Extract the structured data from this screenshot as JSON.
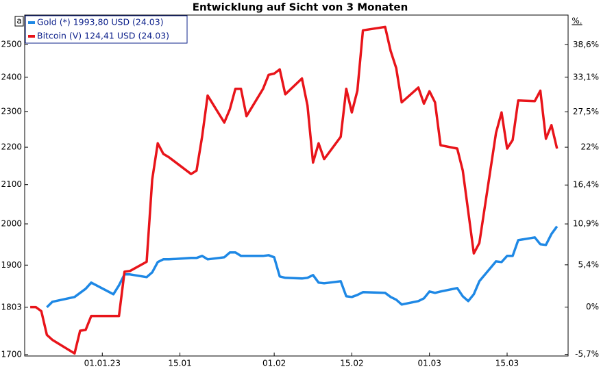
{
  "chart_data": {
    "type": "line",
    "title": "Entwicklung auf Sicht von 3 Monaten",
    "y_label": "a",
    "y2_label": "%.",
    "log_scale": true,
    "grid": false,
    "legend": "upper left",
    "x": [
      "2022-12-19",
      "2022-12-20",
      "2022-12-21",
      "2022-12-22",
      "2022-12-23",
      "2022-12-27",
      "2022-12-28",
      "2022-12-29",
      "2022-12-30",
      "2023-01-03",
      "2023-01-04",
      "2023-01-05",
      "2023-01-06",
      "2023-01-09",
      "2023-01-10",
      "2023-01-11",
      "2023-01-12",
      "2023-01-13",
      "2023-01-17",
      "2023-01-18",
      "2023-01-19",
      "2023-01-20",
      "2023-01-23",
      "2023-01-24",
      "2023-01-25",
      "2023-01-26",
      "2023-01-27",
      "2023-01-30",
      "2023-01-31",
      "2023-02-01",
      "2023-02-02",
      "2023-02-03",
      "2023-02-06",
      "2023-02-07",
      "2023-02-08",
      "2023-02-09",
      "2023-02-10",
      "2023-02-13",
      "2023-02-14",
      "2023-02-15",
      "2023-02-16",
      "2023-02-17",
      "2023-02-21",
      "2023-02-22",
      "2023-02-23",
      "2023-02-24",
      "2023-02-27",
      "2023-02-28",
      "2023-03-01",
      "2023-03-02",
      "2023-03-03",
      "2023-03-06",
      "2023-03-07",
      "2023-03-08",
      "2023-03-09",
      "2023-03-10",
      "2023-03-13",
      "2023-03-14",
      "2023-03-15",
      "2023-03-16",
      "2023-03-17",
      "2023-03-20",
      "2023-03-21",
      "2023-03-22",
      "2023-03-23",
      "2023-03-24"
    ],
    "xlim": [
      "2022-12-18",
      "2023-03-26"
    ],
    "xticks": [
      {
        "value": "2023-01-01",
        "label": "01.01.23"
      },
      {
        "value": "2023-01-15",
        "label": "15.01"
      },
      {
        "value": "2023-02-01",
        "label": "01.02"
      },
      {
        "value": "2023-02-15",
        "label": "15.02"
      },
      {
        "value": "2023-03-01",
        "label": "01.03"
      },
      {
        "value": "2023-03-15",
        "label": "15.03"
      }
    ],
    "ylim": [
      1697,
      2593
    ],
    "yticks": [
      1700,
      1803,
      1900,
      2000,
      2100,
      2200,
      2300,
      2400,
      2500
    ],
    "y2lim": [
      -5.9,
      43.8
    ],
    "y2ticks": [
      {
        "value": -5.7,
        "label": "-5,7%"
      },
      {
        "value": 0,
        "label": "0%"
      },
      {
        "value": 5.4,
        "label": "5,4%"
      },
      {
        "value": 10.9,
        "label": "10,9%"
      },
      {
        "value": 16.4,
        "label": "16,4%"
      },
      {
        "value": 22,
        "label": "22%"
      },
      {
        "value": 27.5,
        "label": "27,5%"
      },
      {
        "value": 33.1,
        "label": "33,1%"
      },
      {
        "value": 38.6,
        "label": "38,6%"
      }
    ],
    "series": [
      {
        "name": "Gold (*) 1993,80 USD (24.03)",
        "color": "#1e88e5",
        "values": [
          null,
          null,
          null,
          1803,
          1815.3,
          1826.2,
          1835.6,
          1845.0,
          1859.1,
          1832.4,
          1852.8,
          1878.2,
          1878.2,
          1871.9,
          1883.0,
          1907.2,
          1913.7,
          1913.7,
          1917.0,
          1917.0,
          1921.9,
          1913.7,
          1918.6,
          1930.1,
          1930.1,
          1921.9,
          1921.9,
          1921.9,
          1923.6,
          1918.6,
          1873.5,
          1870.3,
          1868.7,
          1870.3,
          1876.6,
          1859.1,
          1857.6,
          1862.3,
          1827.7,
          1826.2,
          1830.9,
          1837.1,
          1835.6,
          1826.2,
          1820.0,
          1809.2,
          1816.9,
          1823.1,
          1838.7,
          1835.6,
          1838.7,
          1846.5,
          1827.7,
          1816.9,
          1832.4,
          1862.3,
          1908.9,
          1907.2,
          1921.9,
          1921.9,
          1959.9,
          1966.6,
          1950.0,
          1948.3,
          1975.0,
          1993.8
        ]
      },
      {
        "name": "Bitcoin (V) 124,41 USD (24.03)",
        "color": "#e8141a",
        "axis": "y2",
        "values": [
          0,
          0,
          -0.5,
          -3.4,
          -4.0,
          -5.6,
          -2.9,
          -2.8,
          -1.1,
          -1.1,
          -1.1,
          4.5,
          4.6,
          5.8,
          17.2,
          22.6,
          21.0,
          20.5,
          18.0,
          18.5,
          23.6,
          30.1,
          25.8,
          27.9,
          31.2,
          31.2,
          26.8,
          31.2,
          33.5,
          33.7,
          34.4,
          30.3,
          32.9,
          28.5,
          19.7,
          22.6,
          20.2,
          23.6,
          31.2,
          27.4,
          30.9,
          41.1,
          41.7,
          37.5,
          34.6,
          29.0,
          31.4,
          28.8,
          30.8,
          29.0,
          22.3,
          21.8,
          18.5,
          12.6,
          6.9,
          8.3,
          24.2,
          27.4,
          21.8,
          23.1,
          29.3,
          29.2,
          30.9,
          23.3,
          25.4,
          21.8
        ]
      }
    ]
  }
}
